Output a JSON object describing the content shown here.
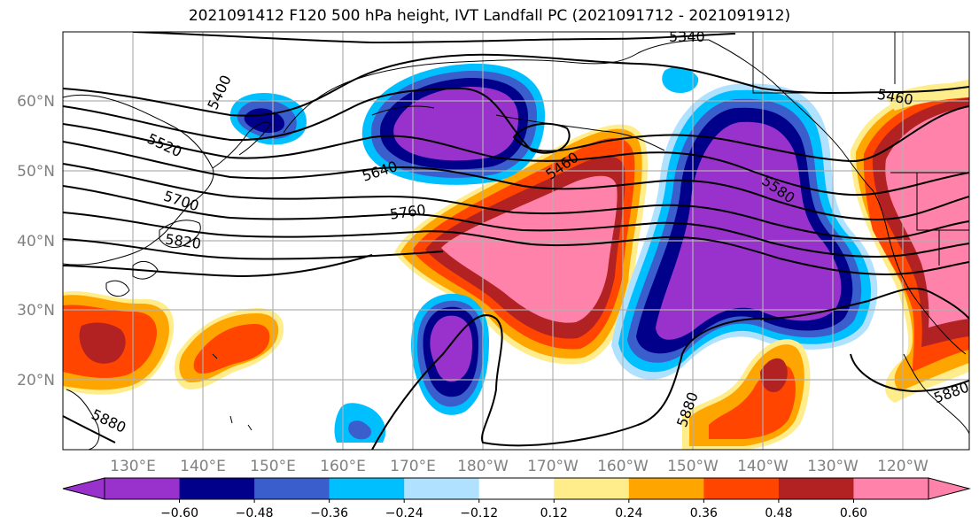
{
  "title": "2021091412 F120 500 hPa height, IVT Landfall PC (2021091712 - 2021091912)",
  "map": {
    "lon_labels": [
      "130°E",
      "140°E",
      "150°E",
      "160°E",
      "170°E",
      "180°W",
      "170°W",
      "160°W",
      "150°W",
      "140°W",
      "130°W",
      "120°W"
    ],
    "lat_labels": [
      "60°N",
      "50°N",
      "40°N",
      "30°N",
      "20°N"
    ],
    "height_contour_labels": [
      "5340",
      "5400",
      "5460",
      "5460",
      "5520",
      "5580",
      "5640",
      "5700",
      "5760",
      "5820",
      "5880",
      "5880",
      "5880"
    ]
  },
  "colorbar": {
    "ticks": [
      "−0.60",
      "−0.48",
      "−0.36",
      "−0.24",
      "−0.12",
      "0.12",
      "0.24",
      "0.36",
      "0.48",
      "0.60"
    ],
    "colors": [
      "#9932cc",
      "#00008b",
      "#3a5fcd",
      "#00bfff",
      "#b0e2ff",
      "#ffffff",
      "#ffec8b",
      "#ffa500",
      "#ff4500",
      "#b22222",
      "#ff82ab"
    ],
    "extend": "both"
  }
}
